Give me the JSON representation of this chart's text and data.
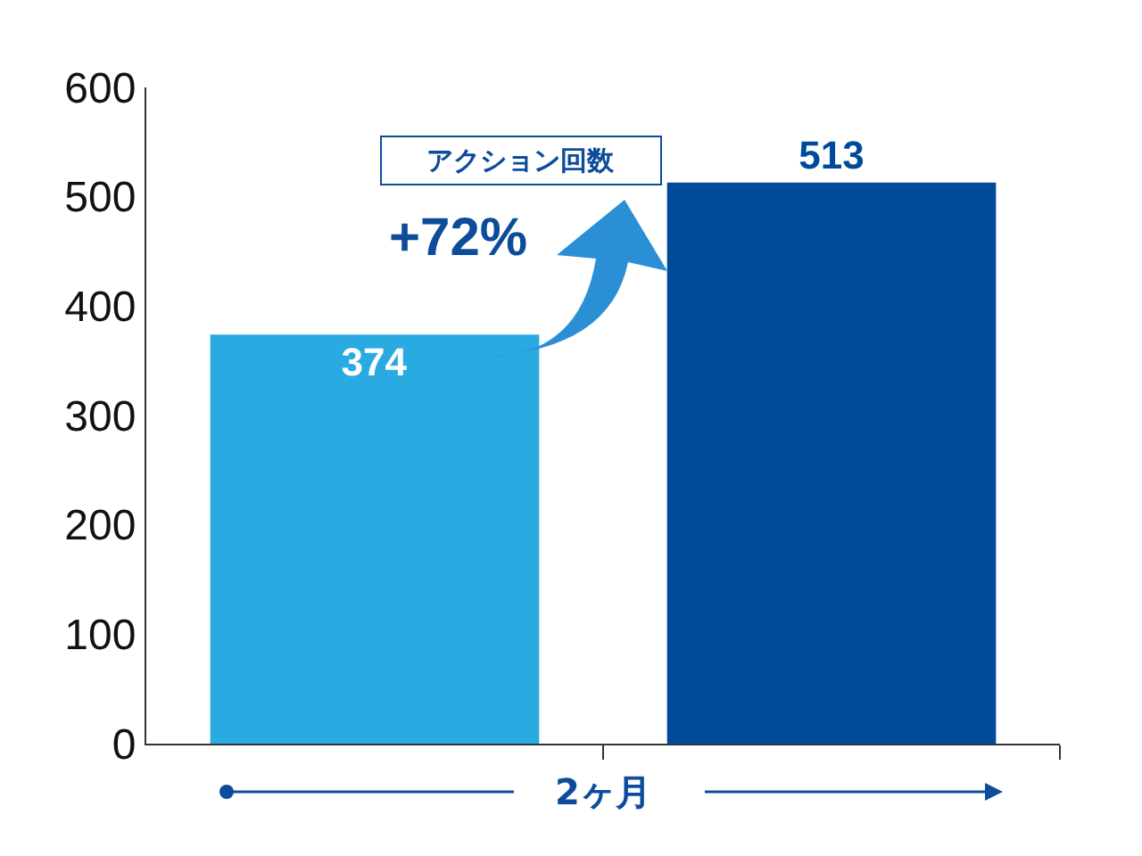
{
  "chart_data": {
    "type": "bar",
    "xlabel": "2ヶ月",
    "categories": [
      null,
      null
    ],
    "values": [
      374,
      513
    ],
    "colors": [
      "#29abe2",
      "#004a9c"
    ],
    "ylim": [
      0,
      600
    ],
    "yticks": [
      0,
      100,
      200,
      300,
      400,
      500,
      600
    ],
    "data_labels": true,
    "legend": false,
    "annotations": [
      "アクション回数",
      "+72%"
    ]
  }
}
